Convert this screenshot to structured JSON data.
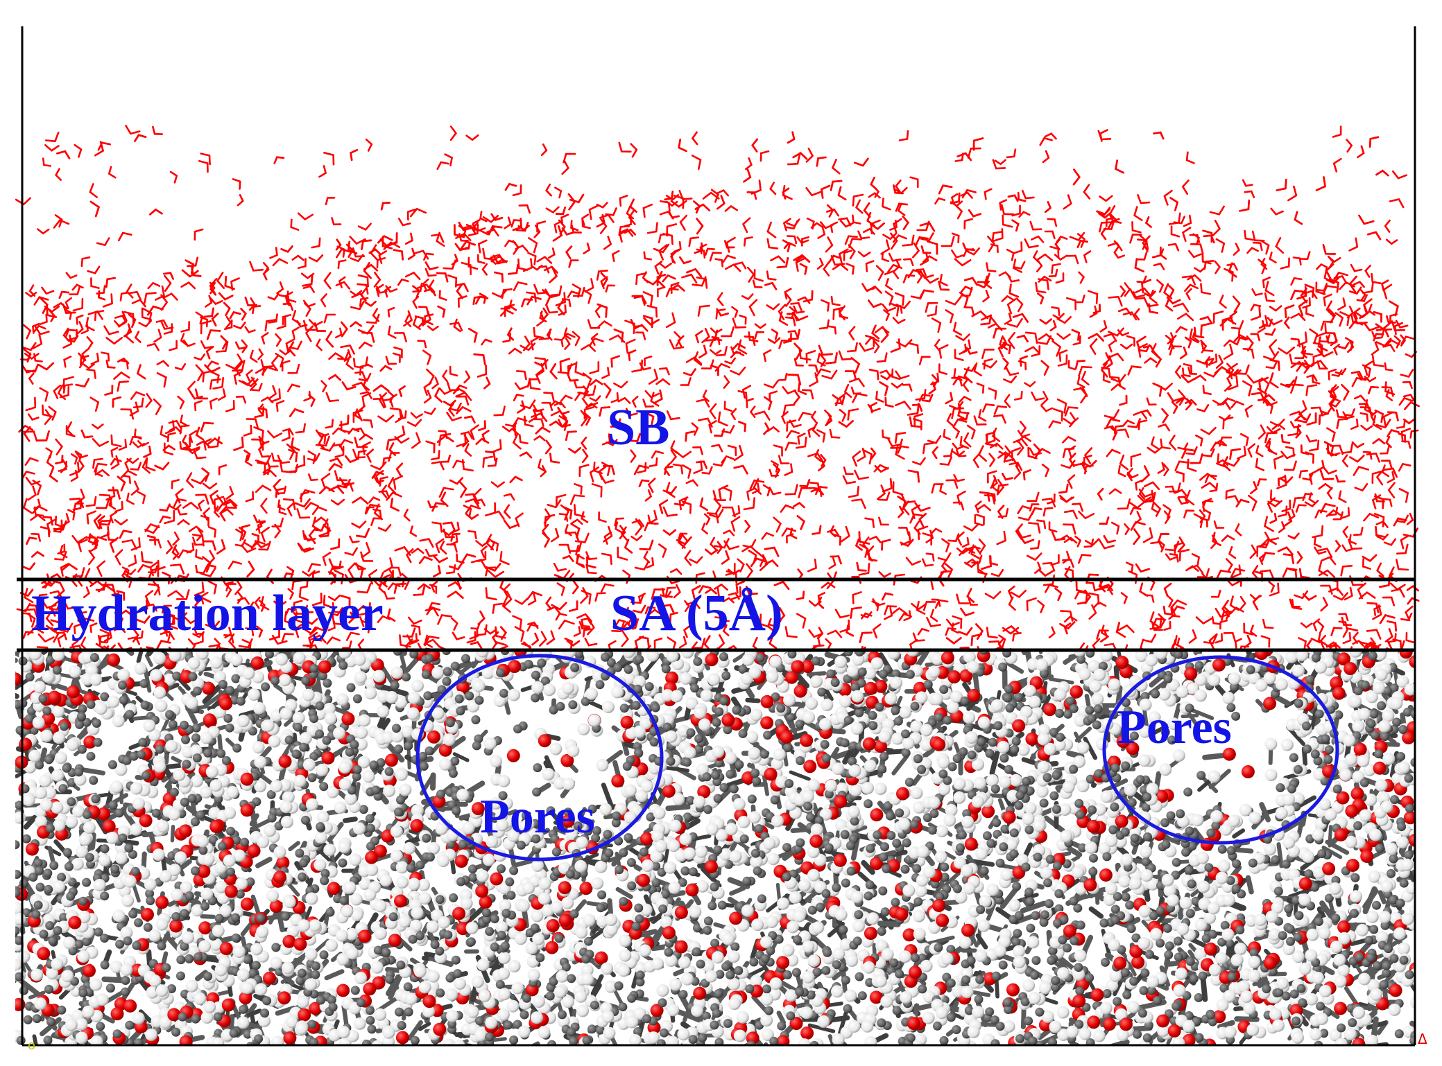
{
  "labels": {
    "bulk_solution": "SB",
    "hydration_layer": "Hydration layer",
    "sa_layer": "SA (5Å)",
    "pores_left": "Pores",
    "pores_right": "Pores"
  },
  "colors": {
    "label_blue": "#1414e6",
    "water_red": "#ff0000",
    "carbon_gray": "#5a5a5a",
    "hydrogen_white": "#eeeeee",
    "oxygen_red": "#e00000",
    "frame_black": "#000000",
    "pore_outline": "#1a1ae0"
  },
  "regions": [
    "water molecules (bulk)",
    "hydration layer",
    "porous solid surface"
  ]
}
